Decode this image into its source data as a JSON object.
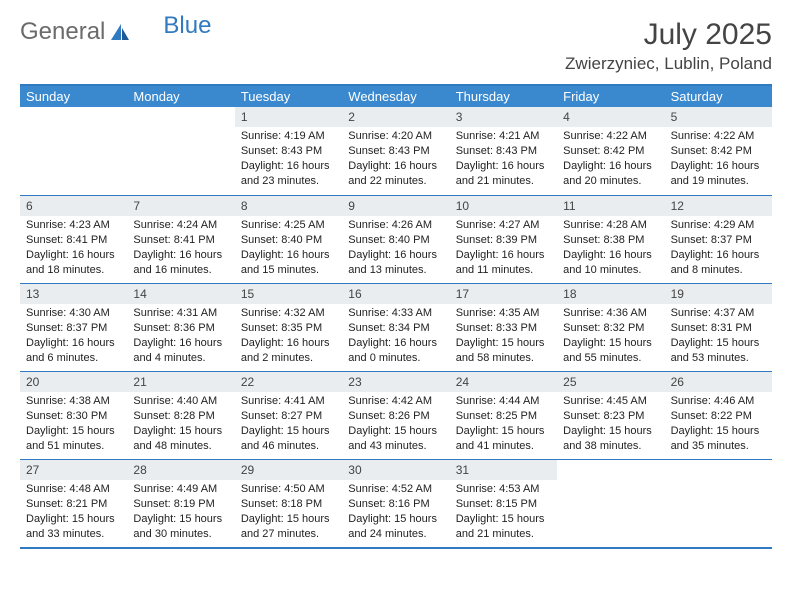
{
  "logo": {
    "general": "General",
    "blue": "Blue"
  },
  "title": {
    "month": "July 2025",
    "location": "Zwierzyniec, Lublin, Poland"
  },
  "weekdays": [
    "Sunday",
    "Monday",
    "Tuesday",
    "Wednesday",
    "Thursday",
    "Friday",
    "Saturday"
  ],
  "colors": {
    "header_bg": "#3a89cf",
    "border": "#2f7ac0",
    "daynum_bg": "#e9edf0",
    "text": "#222222",
    "logo_gray": "#6b6b6b",
    "logo_blue": "#2f7ac0"
  },
  "weeks": [
    [
      {
        "day": "",
        "sunrise": "",
        "sunset": "",
        "daylight": ""
      },
      {
        "day": "",
        "sunrise": "",
        "sunset": "",
        "daylight": ""
      },
      {
        "day": "1",
        "sunrise": "Sunrise: 4:19 AM",
        "sunset": "Sunset: 8:43 PM",
        "daylight": "Daylight: 16 hours and 23 minutes."
      },
      {
        "day": "2",
        "sunrise": "Sunrise: 4:20 AM",
        "sunset": "Sunset: 8:43 PM",
        "daylight": "Daylight: 16 hours and 22 minutes."
      },
      {
        "day": "3",
        "sunrise": "Sunrise: 4:21 AM",
        "sunset": "Sunset: 8:43 PM",
        "daylight": "Daylight: 16 hours and 21 minutes."
      },
      {
        "day": "4",
        "sunrise": "Sunrise: 4:22 AM",
        "sunset": "Sunset: 8:42 PM",
        "daylight": "Daylight: 16 hours and 20 minutes."
      },
      {
        "day": "5",
        "sunrise": "Sunrise: 4:22 AM",
        "sunset": "Sunset: 8:42 PM",
        "daylight": "Daylight: 16 hours and 19 minutes."
      }
    ],
    [
      {
        "day": "6",
        "sunrise": "Sunrise: 4:23 AM",
        "sunset": "Sunset: 8:41 PM",
        "daylight": "Daylight: 16 hours and 18 minutes."
      },
      {
        "day": "7",
        "sunrise": "Sunrise: 4:24 AM",
        "sunset": "Sunset: 8:41 PM",
        "daylight": "Daylight: 16 hours and 16 minutes."
      },
      {
        "day": "8",
        "sunrise": "Sunrise: 4:25 AM",
        "sunset": "Sunset: 8:40 PM",
        "daylight": "Daylight: 16 hours and 15 minutes."
      },
      {
        "day": "9",
        "sunrise": "Sunrise: 4:26 AM",
        "sunset": "Sunset: 8:40 PM",
        "daylight": "Daylight: 16 hours and 13 minutes."
      },
      {
        "day": "10",
        "sunrise": "Sunrise: 4:27 AM",
        "sunset": "Sunset: 8:39 PM",
        "daylight": "Daylight: 16 hours and 11 minutes."
      },
      {
        "day": "11",
        "sunrise": "Sunrise: 4:28 AM",
        "sunset": "Sunset: 8:38 PM",
        "daylight": "Daylight: 16 hours and 10 minutes."
      },
      {
        "day": "12",
        "sunrise": "Sunrise: 4:29 AM",
        "sunset": "Sunset: 8:37 PM",
        "daylight": "Daylight: 16 hours and 8 minutes."
      }
    ],
    [
      {
        "day": "13",
        "sunrise": "Sunrise: 4:30 AM",
        "sunset": "Sunset: 8:37 PM",
        "daylight": "Daylight: 16 hours and 6 minutes."
      },
      {
        "day": "14",
        "sunrise": "Sunrise: 4:31 AM",
        "sunset": "Sunset: 8:36 PM",
        "daylight": "Daylight: 16 hours and 4 minutes."
      },
      {
        "day": "15",
        "sunrise": "Sunrise: 4:32 AM",
        "sunset": "Sunset: 8:35 PM",
        "daylight": "Daylight: 16 hours and 2 minutes."
      },
      {
        "day": "16",
        "sunrise": "Sunrise: 4:33 AM",
        "sunset": "Sunset: 8:34 PM",
        "daylight": "Daylight: 16 hours and 0 minutes."
      },
      {
        "day": "17",
        "sunrise": "Sunrise: 4:35 AM",
        "sunset": "Sunset: 8:33 PM",
        "daylight": "Daylight: 15 hours and 58 minutes."
      },
      {
        "day": "18",
        "sunrise": "Sunrise: 4:36 AM",
        "sunset": "Sunset: 8:32 PM",
        "daylight": "Daylight: 15 hours and 55 minutes."
      },
      {
        "day": "19",
        "sunrise": "Sunrise: 4:37 AM",
        "sunset": "Sunset: 8:31 PM",
        "daylight": "Daylight: 15 hours and 53 minutes."
      }
    ],
    [
      {
        "day": "20",
        "sunrise": "Sunrise: 4:38 AM",
        "sunset": "Sunset: 8:30 PM",
        "daylight": "Daylight: 15 hours and 51 minutes."
      },
      {
        "day": "21",
        "sunrise": "Sunrise: 4:40 AM",
        "sunset": "Sunset: 8:28 PM",
        "daylight": "Daylight: 15 hours and 48 minutes."
      },
      {
        "day": "22",
        "sunrise": "Sunrise: 4:41 AM",
        "sunset": "Sunset: 8:27 PM",
        "daylight": "Daylight: 15 hours and 46 minutes."
      },
      {
        "day": "23",
        "sunrise": "Sunrise: 4:42 AM",
        "sunset": "Sunset: 8:26 PM",
        "daylight": "Daylight: 15 hours and 43 minutes."
      },
      {
        "day": "24",
        "sunrise": "Sunrise: 4:44 AM",
        "sunset": "Sunset: 8:25 PM",
        "daylight": "Daylight: 15 hours and 41 minutes."
      },
      {
        "day": "25",
        "sunrise": "Sunrise: 4:45 AM",
        "sunset": "Sunset: 8:23 PM",
        "daylight": "Daylight: 15 hours and 38 minutes."
      },
      {
        "day": "26",
        "sunrise": "Sunrise: 4:46 AM",
        "sunset": "Sunset: 8:22 PM",
        "daylight": "Daylight: 15 hours and 35 minutes."
      }
    ],
    [
      {
        "day": "27",
        "sunrise": "Sunrise: 4:48 AM",
        "sunset": "Sunset: 8:21 PM",
        "daylight": "Daylight: 15 hours and 33 minutes."
      },
      {
        "day": "28",
        "sunrise": "Sunrise: 4:49 AM",
        "sunset": "Sunset: 8:19 PM",
        "daylight": "Daylight: 15 hours and 30 minutes."
      },
      {
        "day": "29",
        "sunrise": "Sunrise: 4:50 AM",
        "sunset": "Sunset: 8:18 PM",
        "daylight": "Daylight: 15 hours and 27 minutes."
      },
      {
        "day": "30",
        "sunrise": "Sunrise: 4:52 AM",
        "sunset": "Sunset: 8:16 PM",
        "daylight": "Daylight: 15 hours and 24 minutes."
      },
      {
        "day": "31",
        "sunrise": "Sunrise: 4:53 AM",
        "sunset": "Sunset: 8:15 PM",
        "daylight": "Daylight: 15 hours and 21 minutes."
      },
      {
        "day": "",
        "sunrise": "",
        "sunset": "",
        "daylight": ""
      },
      {
        "day": "",
        "sunrise": "",
        "sunset": "",
        "daylight": ""
      }
    ]
  ]
}
